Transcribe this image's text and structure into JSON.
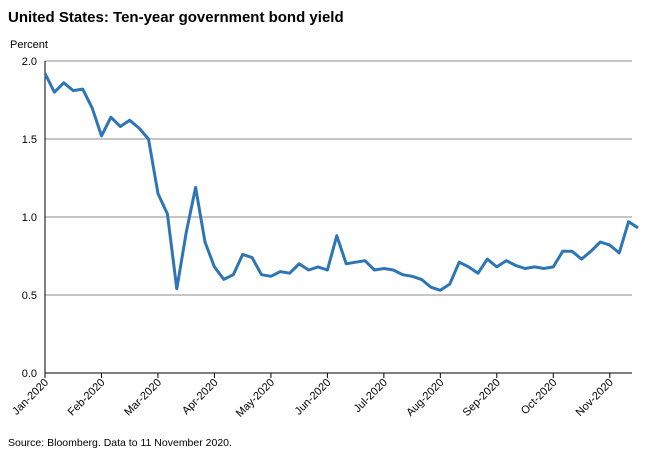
{
  "chart_data": {
    "type": "line",
    "title": "United States: Ten-year government bond yield",
    "y_label": "Percent",
    "source": "Source: Bloomberg.  Data to 11 November 2020.",
    "series": [
      {
        "name": "Ten-year government bond yield",
        "color": "#2e75b6",
        "values": [
          1.92,
          1.8,
          1.86,
          1.81,
          1.82,
          1.7,
          1.52,
          1.64,
          1.58,
          1.62,
          1.57,
          1.5,
          1.15,
          1.02,
          0.54,
          0.9,
          1.19,
          0.84,
          0.68,
          0.6,
          0.63,
          0.76,
          0.74,
          0.63,
          0.62,
          0.65,
          0.64,
          0.7,
          0.66,
          0.68,
          0.66,
          0.88,
          0.7,
          0.71,
          0.72,
          0.66,
          0.67,
          0.66,
          0.63,
          0.62,
          0.6,
          0.55,
          0.53,
          0.57,
          0.71,
          0.68,
          0.64,
          0.73,
          0.68,
          0.72,
          0.69,
          0.67,
          0.68,
          0.67,
          0.68,
          0.78,
          0.78,
          0.73,
          0.78,
          0.84,
          0.82,
          0.77,
          0.97,
          0.93
        ]
      }
    ],
    "xlim": [
      0,
      63
    ],
    "xticks": [
      {
        "value": 0,
        "label": "Jan-2020"
      },
      {
        "value": 6,
        "label": "Feb-2020"
      },
      {
        "value": 12,
        "label": "Mar-2020"
      },
      {
        "value": 18,
        "label": "Apr-2020"
      },
      {
        "value": 24,
        "label": "May-2020"
      },
      {
        "value": 30,
        "label": "Jun-2020"
      },
      {
        "value": 36,
        "label": "Jul-2020"
      },
      {
        "value": 42,
        "label": "Aug-2020"
      },
      {
        "value": 48,
        "label": "Sep-2020"
      },
      {
        "value": 54,
        "label": "Oct-2020"
      },
      {
        "value": 60,
        "label": "Nov-2020"
      }
    ],
    "ylim": [
      0,
      2
    ],
    "yticks": [
      {
        "value": 0,
        "label": "0.0"
      },
      {
        "value": 0.5,
        "label": "0.5"
      },
      {
        "value": 1,
        "label": "1.0"
      },
      {
        "value": 1.5,
        "label": "1.5"
      },
      {
        "value": 2,
        "label": "2.0"
      }
    ],
    "grid": true
  }
}
